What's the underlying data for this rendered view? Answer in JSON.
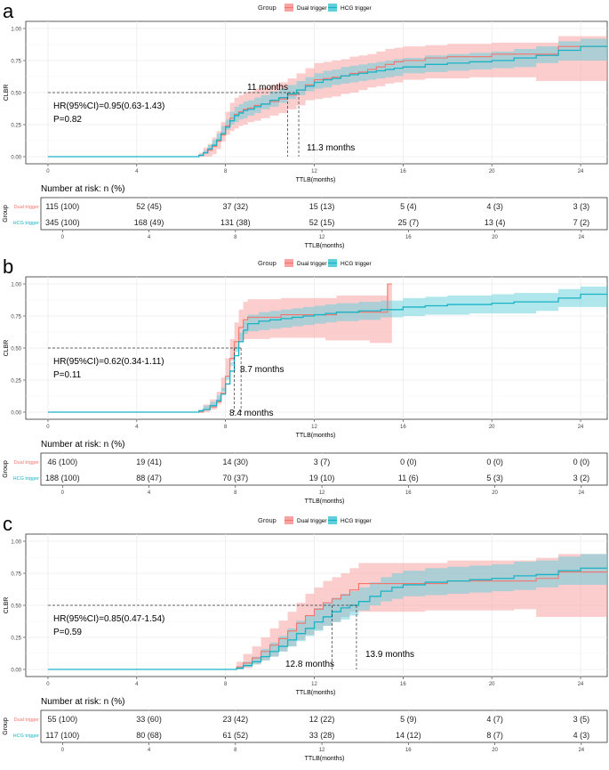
{
  "colors": {
    "dual": "#f3756d",
    "hcg": "#19b3c6",
    "dual_band": "#f8a4a4",
    "hcg_band": "#5fcfdc",
    "panel_bg": "#ffffff",
    "grid": "#ebebeb"
  },
  "legend": {
    "title": "Group",
    "dual": "Dual trigger",
    "hcg": "HCG trigger"
  },
  "common": {
    "ylabel": "CLBR",
    "xlabel": "TTLB(months)",
    "yticks": [
      "0.00",
      "0.25",
      "0.50",
      "0.75",
      "1.00"
    ],
    "xticks": [
      "0",
      "4",
      "8",
      "12",
      "16",
      "20",
      "24"
    ],
    "risk_title": "Number at risk: n (%)",
    "risk_ylabel": "Group",
    "risk_row_labels": [
      "Dual trigger",
      "HCG trigger"
    ]
  },
  "chart_data": [
    {
      "panel_label": "a",
      "type": "line",
      "xlim": [
        -1,
        25.2
      ],
      "ylim": [
        0,
        1
      ],
      "hr_text": "HR(95%CI)=0.95(0.63-1.43)",
      "p_text": "P=0.82",
      "medians": [
        {
          "label": "11 months",
          "x": 10.8
        },
        {
          "label": "11.3 months",
          "x": 11.3
        }
      ],
      "series": [
        {
          "name": "Dual trigger",
          "x": [
            0,
            6.8,
            7.0,
            7.2,
            7.4,
            7.6,
            7.8,
            8.0,
            8.2,
            8.4,
            8.6,
            8.8,
            9.0,
            9.3,
            9.6,
            10.0,
            10.4,
            10.8,
            11.2,
            11.6,
            12.0,
            12.4,
            12.8,
            13.2,
            13.6,
            14.0,
            14.4,
            14.8,
            15.2,
            15.6,
            16.0,
            17.0,
            18.0,
            19.0,
            20.0,
            21.0,
            22.0,
            23.0,
            25.2
          ],
          "y": [
            0,
            0.01,
            0.03,
            0.05,
            0.08,
            0.12,
            0.17,
            0.24,
            0.3,
            0.33,
            0.35,
            0.37,
            0.38,
            0.4,
            0.41,
            0.43,
            0.45,
            0.48,
            0.52,
            0.56,
            0.6,
            0.61,
            0.62,
            0.63,
            0.65,
            0.66,
            0.68,
            0.7,
            0.72,
            0.74,
            0.75,
            0.77,
            0.78,
            0.78,
            0.8,
            0.8,
            0.8,
            0.86,
            0.86
          ],
          "lo": [
            0,
            0,
            0,
            0,
            0,
            0.02,
            0.06,
            0.12,
            0.17,
            0.2,
            0.22,
            0.24,
            0.25,
            0.27,
            0.28,
            0.3,
            0.32,
            0.34,
            0.37,
            0.4,
            0.44,
            0.45,
            0.46,
            0.47,
            0.49,
            0.5,
            0.52,
            0.54,
            0.55,
            0.57,
            0.58,
            0.6,
            0.61,
            0.61,
            0.62,
            0.62,
            0.62,
            0.59,
            0.59
          ],
          "hi": [
            0,
            0.03,
            0.07,
            0.1,
            0.15,
            0.2,
            0.27,
            0.35,
            0.42,
            0.46,
            0.48,
            0.5,
            0.51,
            0.53,
            0.54,
            0.56,
            0.58,
            0.61,
            0.65,
            0.69,
            0.73,
            0.74,
            0.75,
            0.76,
            0.78,
            0.79,
            0.8,
            0.82,
            0.84,
            0.85,
            0.86,
            0.87,
            0.88,
            0.88,
            0.89,
            0.89,
            0.89,
            0.94,
            0.94
          ]
        },
        {
          "name": "HCG trigger",
          "x": [
            0,
            6.8,
            7.0,
            7.2,
            7.4,
            7.6,
            7.8,
            8.0,
            8.2,
            8.4,
            8.6,
            8.8,
            9.0,
            9.3,
            9.6,
            10.0,
            10.4,
            10.8,
            11.2,
            11.6,
            12.0,
            12.4,
            12.8,
            13.2,
            13.6,
            14.0,
            14.4,
            14.8,
            15.2,
            15.6,
            16.0,
            17.0,
            18.0,
            19.0,
            20.0,
            21.0,
            22.0,
            23.0,
            24.0,
            25.2
          ],
          "y": [
            0,
            0.01,
            0.03,
            0.06,
            0.09,
            0.13,
            0.18,
            0.23,
            0.28,
            0.32,
            0.34,
            0.36,
            0.37,
            0.39,
            0.41,
            0.44,
            0.46,
            0.49,
            0.52,
            0.55,
            0.58,
            0.6,
            0.61,
            0.63,
            0.64,
            0.65,
            0.66,
            0.67,
            0.68,
            0.69,
            0.7,
            0.72,
            0.73,
            0.74,
            0.75,
            0.77,
            0.79,
            0.83,
            0.86,
            0.86
          ],
          "lo": [
            0,
            0,
            0.01,
            0.03,
            0.05,
            0.08,
            0.12,
            0.17,
            0.21,
            0.25,
            0.27,
            0.29,
            0.3,
            0.32,
            0.34,
            0.37,
            0.39,
            0.42,
            0.45,
            0.48,
            0.51,
            0.53,
            0.54,
            0.56,
            0.57,
            0.58,
            0.59,
            0.6,
            0.61,
            0.62,
            0.63,
            0.65,
            0.66,
            0.67,
            0.68,
            0.69,
            0.7,
            0.73,
            0.75,
            0.75
          ],
          "hi": [
            0,
            0.02,
            0.05,
            0.09,
            0.13,
            0.18,
            0.24,
            0.29,
            0.35,
            0.39,
            0.41,
            0.43,
            0.44,
            0.46,
            0.48,
            0.51,
            0.53,
            0.56,
            0.59,
            0.62,
            0.65,
            0.67,
            0.68,
            0.7,
            0.71,
            0.72,
            0.73,
            0.74,
            0.75,
            0.76,
            0.77,
            0.79,
            0.8,
            0.81,
            0.82,
            0.84,
            0.86,
            0.9,
            0.92,
            0.92
          ]
        }
      ],
      "risk_x": [
        0,
        4,
        8,
        12,
        16,
        20,
        24
      ],
      "risk": [
        [
          "115 (100)",
          "52 (45)",
          "37 (32)",
          "15 (13)",
          "5 (4)",
          "4 (3)",
          "3 (3)"
        ],
        [
          "345 (100)",
          "168 (49)",
          "131 (38)",
          "52 (15)",
          "25 (7)",
          "13 (4)",
          "7 (2)"
        ]
      ]
    },
    {
      "panel_label": "b",
      "type": "line",
      "xlim": [
        -1,
        25.2
      ],
      "ylim": [
        0,
        1
      ],
      "hr_text": "HR(95%CI)=0.62(0.34-1.11)",
      "p_text": "P=0.11",
      "medians": [
        {
          "label": "8.4 months",
          "x": 8.4
        },
        {
          "label": "8.7 months",
          "x": 8.7
        }
      ],
      "series": [
        {
          "name": "Dual trigger",
          "x": [
            0,
            7.0,
            7.3,
            7.6,
            7.8,
            8.0,
            8.2,
            8.4,
            8.6,
            8.8,
            9.0,
            9.5,
            10.0,
            10.5,
            11.0,
            11.5,
            12.0,
            12.5,
            13.0,
            13.5,
            14.0,
            14.5,
            15.0,
            15.3,
            15.5
          ],
          "y": [
            0,
            0.02,
            0.04,
            0.08,
            0.15,
            0.28,
            0.42,
            0.55,
            0.66,
            0.72,
            0.74,
            0.74,
            0.74,
            0.76,
            0.76,
            0.76,
            0.76,
            0.76,
            0.78,
            0.78,
            0.78,
            0.78,
            0.78,
            1.0,
            1.0
          ],
          "lo": [
            0,
            0,
            0,
            0.02,
            0.06,
            0.16,
            0.28,
            0.4,
            0.5,
            0.55,
            0.57,
            0.57,
            0.57,
            0.58,
            0.58,
            0.58,
            0.58,
            0.58,
            0.56,
            0.56,
            0.56,
            0.56,
            0.54,
            0.54,
            0.54
          ],
          "hi": [
            0,
            0.06,
            0.1,
            0.16,
            0.27,
            0.42,
            0.57,
            0.7,
            0.8,
            0.86,
            0.88,
            0.88,
            0.88,
            0.89,
            0.89,
            0.89,
            0.89,
            0.89,
            0.91,
            0.91,
            0.91,
            0.91,
            0.91,
            1.0,
            1.0
          ]
        },
        {
          "name": "HCG trigger",
          "x": [
            0,
            6.8,
            7.0,
            7.3,
            7.6,
            7.8,
            8.0,
            8.2,
            8.4,
            8.6,
            8.8,
            9.0,
            9.5,
            10.0,
            10.5,
            11.0,
            11.5,
            12.0,
            12.5,
            13.0,
            14.0,
            15.0,
            16.0,
            17.0,
            18.0,
            19.0,
            20.0,
            21.0,
            22.0,
            23.0,
            24.0,
            25.2
          ],
          "y": [
            0,
            0.01,
            0.02,
            0.05,
            0.09,
            0.14,
            0.22,
            0.32,
            0.44,
            0.55,
            0.64,
            0.69,
            0.71,
            0.72,
            0.73,
            0.74,
            0.75,
            0.76,
            0.77,
            0.78,
            0.79,
            0.8,
            0.82,
            0.83,
            0.84,
            0.84,
            0.85,
            0.86,
            0.86,
            0.89,
            0.92,
            0.92
          ],
          "lo": [
            0,
            0,
            0,
            0.02,
            0.05,
            0.09,
            0.16,
            0.25,
            0.36,
            0.47,
            0.56,
            0.61,
            0.63,
            0.64,
            0.65,
            0.66,
            0.67,
            0.68,
            0.69,
            0.7,
            0.71,
            0.72,
            0.74,
            0.75,
            0.76,
            0.76,
            0.77,
            0.77,
            0.77,
            0.79,
            0.82,
            0.82
          ],
          "hi": [
            0,
            0.02,
            0.05,
            0.08,
            0.13,
            0.19,
            0.28,
            0.39,
            0.51,
            0.62,
            0.71,
            0.76,
            0.78,
            0.79,
            0.8,
            0.81,
            0.82,
            0.83,
            0.84,
            0.85,
            0.86,
            0.87,
            0.89,
            0.9,
            0.91,
            0.91,
            0.92,
            0.93,
            0.93,
            0.96,
            0.98,
            0.98
          ]
        }
      ],
      "risk_x": [
        0,
        4,
        8,
        12,
        16,
        20,
        24
      ],
      "risk": [
        [
          "46 (100)",
          "19 (41)",
          "14 (30)",
          "3 (7)",
          "0 (0)",
          "0 (0)",
          "0 (0)"
        ],
        [
          "188 (100)",
          "88 (47)",
          "70 (37)",
          "19 (10)",
          "11 (6)",
          "5 (3)",
          "3 (2)"
        ]
      ]
    },
    {
      "panel_label": "c",
      "type": "line",
      "xlim": [
        -1,
        25.2
      ],
      "ylim": [
        0,
        1
      ],
      "hr_text": "HR(95%CI)=0.85(0.47-1.54)",
      "p_text": "P=0.59",
      "medians": [
        {
          "label": "12.8 months",
          "x": 12.8
        },
        {
          "label": "13.9 months",
          "x": 13.9
        }
      ],
      "series": [
        {
          "name": "Dual trigger",
          "x": [
            0,
            8.5,
            8.8,
            9.2,
            9.6,
            10.0,
            10.4,
            10.8,
            11.2,
            11.6,
            12.0,
            12.4,
            12.8,
            13.2,
            13.6,
            14.0,
            14.5,
            15.0,
            16.0,
            17.0,
            18.0,
            19.0,
            20.0,
            21.0,
            22.0,
            23.0,
            24.0,
            25.2
          ],
          "y": [
            0,
            0.02,
            0.05,
            0.09,
            0.14,
            0.19,
            0.24,
            0.3,
            0.36,
            0.42,
            0.47,
            0.52,
            0.55,
            0.58,
            0.62,
            0.67,
            0.67,
            0.67,
            0.67,
            0.67,
            0.69,
            0.69,
            0.69,
            0.69,
            0.71,
            0.76,
            0.76,
            0.76
          ],
          "lo": [
            0,
            0,
            0,
            0.01,
            0.04,
            0.07,
            0.1,
            0.14,
            0.18,
            0.23,
            0.27,
            0.31,
            0.34,
            0.37,
            0.41,
            0.45,
            0.45,
            0.45,
            0.45,
            0.45,
            0.46,
            0.46,
            0.46,
            0.46,
            0.47,
            0.41,
            0.41,
            0.41
          ],
          "hi": [
            0,
            0.06,
            0.12,
            0.18,
            0.25,
            0.32,
            0.38,
            0.45,
            0.52,
            0.59,
            0.64,
            0.69,
            0.72,
            0.75,
            0.79,
            0.83,
            0.83,
            0.83,
            0.83,
            0.83,
            0.85,
            0.85,
            0.85,
            0.85,
            0.87,
            0.9,
            0.9,
            0.9
          ]
        },
        {
          "name": "HCG trigger",
          "x": [
            0,
            8.5,
            8.8,
            9.2,
            9.6,
            10.0,
            10.4,
            10.8,
            11.2,
            11.6,
            12.0,
            12.4,
            12.8,
            13.2,
            13.6,
            14.0,
            14.5,
            15.0,
            15.5,
            16.0,
            17.0,
            18.0,
            19.0,
            20.0,
            21.0,
            22.0,
            23.0,
            24.0,
            25.2
          ],
          "y": [
            0,
            0.01,
            0.03,
            0.06,
            0.1,
            0.14,
            0.18,
            0.23,
            0.28,
            0.32,
            0.37,
            0.41,
            0.45,
            0.48,
            0.5,
            0.53,
            0.57,
            0.61,
            0.64,
            0.66,
            0.68,
            0.69,
            0.7,
            0.71,
            0.73,
            0.74,
            0.77,
            0.79,
            0.79
          ],
          "lo": [
            0,
            0,
            0,
            0.02,
            0.04,
            0.07,
            0.1,
            0.14,
            0.18,
            0.22,
            0.26,
            0.3,
            0.34,
            0.37,
            0.39,
            0.42,
            0.46,
            0.5,
            0.53,
            0.55,
            0.57,
            0.58,
            0.59,
            0.6,
            0.61,
            0.62,
            0.64,
            0.66,
            0.66
          ],
          "hi": [
            0,
            0.02,
            0.06,
            0.1,
            0.16,
            0.21,
            0.26,
            0.32,
            0.38,
            0.42,
            0.48,
            0.52,
            0.56,
            0.59,
            0.61,
            0.64,
            0.68,
            0.72,
            0.75,
            0.77,
            0.79,
            0.8,
            0.81,
            0.82,
            0.84,
            0.85,
            0.88,
            0.9,
            0.9
          ]
        }
      ],
      "risk_x": [
        0,
        4,
        8,
        12,
        16,
        20,
        24
      ],
      "risk": [
        [
          "55 (100)",
          "33 (60)",
          "23 (42)",
          "12 (22)",
          "5 (9)",
          "4 (7)",
          "3 (5)"
        ],
        [
          "117 (100)",
          "80 (68)",
          "61 (52)",
          "33 (28)",
          "14 (12)",
          "8 (7)",
          "4 (3)"
        ]
      ]
    }
  ]
}
